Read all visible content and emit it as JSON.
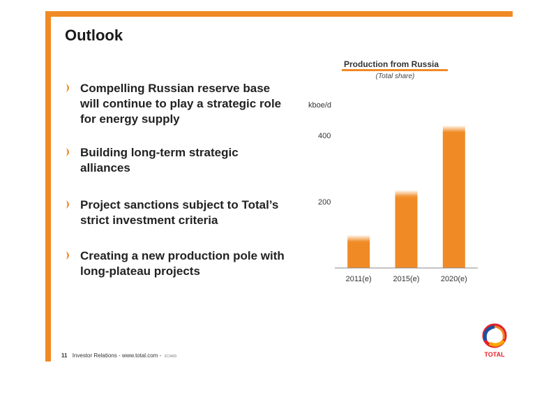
{
  "slide": {
    "title": "Outlook",
    "bullets": [
      "Compelling Russian reserve base will continue to play a strategic role for energy supply",
      "Building long-term strategic alliances",
      "Project sanctions subject to Total’s strict investment criteria",
      "Creating a new production pole with long-plateau projects"
    ]
  },
  "footer": {
    "page_number": "11",
    "text": "Investor Relations - www.total.com -",
    "code": "3C3409"
  },
  "logo": {
    "text": "TOTAL"
  },
  "colors": {
    "accent": "#f08a24",
    "text": "#1a1a1a"
  },
  "chart_data": {
    "type": "bar",
    "title": "Production from Russia",
    "subtitle": "(Total share)",
    "ylabel": "kboe/d",
    "categories": [
      "2011(e)",
      "2015(e)",
      "2020(e)"
    ],
    "values": [
      100,
      235,
      430
    ],
    "ylim": [
      0,
      450
    ],
    "yticks": [
      200,
      400
    ],
    "grid": false,
    "legend": "none",
    "color": "#f08a24"
  }
}
